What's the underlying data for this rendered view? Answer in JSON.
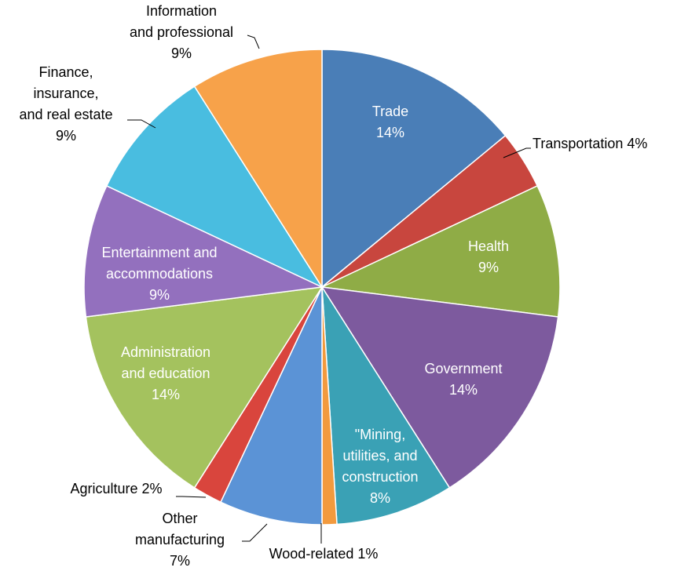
{
  "chart_data": {
    "type": "pie",
    "title": "",
    "slices": [
      {
        "label": "Trade",
        "display": [
          "Trade",
          "14%"
        ],
        "value": 14,
        "color": "#4a7eb7",
        "placement": "inside"
      },
      {
        "label": "Transportation",
        "display": [
          "Transportation 4%"
        ],
        "value": 4,
        "color": "#c8463e",
        "placement": "outside"
      },
      {
        "label": "Health",
        "display": [
          "Health",
          "9%"
        ],
        "value": 9,
        "color": "#8fac46",
        "placement": "inside"
      },
      {
        "label": "Government",
        "display": [
          "Government",
          "14%"
        ],
        "value": 14,
        "color": "#7d5a9e",
        "placement": "inside"
      },
      {
        "label": "Mining, utilities, and construction",
        "display": [
          "\"Mining,",
          "utilities, and",
          "construction",
          "8%"
        ],
        "value": 8,
        "color": "#3aa1b5",
        "placement": "inside"
      },
      {
        "label": "Wood-related",
        "display": [
          "Wood-related 1%"
        ],
        "value": 1,
        "color": "#f29a3e",
        "placement": "outside"
      },
      {
        "label": "Other manufacturing",
        "display": [
          "Other",
          "manufacturing",
          "7%"
        ],
        "value": 7,
        "color": "#5b93d6",
        "placement": "outside"
      },
      {
        "label": "Agriculture",
        "display": [
          "Agriculture 2%"
        ],
        "value": 2,
        "color": "#d9453d",
        "placement": "outside"
      },
      {
        "label": "Administration and education",
        "display": [
          "Administration",
          "and education",
          "14%"
        ],
        "value": 14,
        "color": "#a4c25e",
        "placement": "inside"
      },
      {
        "label": "Entertainment and accommodations",
        "display": [
          "Entertainment and",
          "accommodations",
          "9%"
        ],
        "value": 9,
        "color": "#9370be",
        "placement": "inside"
      },
      {
        "label": "Finance, insurance, and real estate",
        "display": [
          "Finance,",
          "insurance,",
          "and real estate",
          "9%"
        ],
        "value": 9,
        "color": "#49bde0",
        "placement": "outside"
      },
      {
        "label": "Information and professional",
        "display": [
          "Information",
          "and professional",
          "9%"
        ],
        "value": 9,
        "color": "#f7a24a",
        "placement": "outside"
      }
    ]
  }
}
